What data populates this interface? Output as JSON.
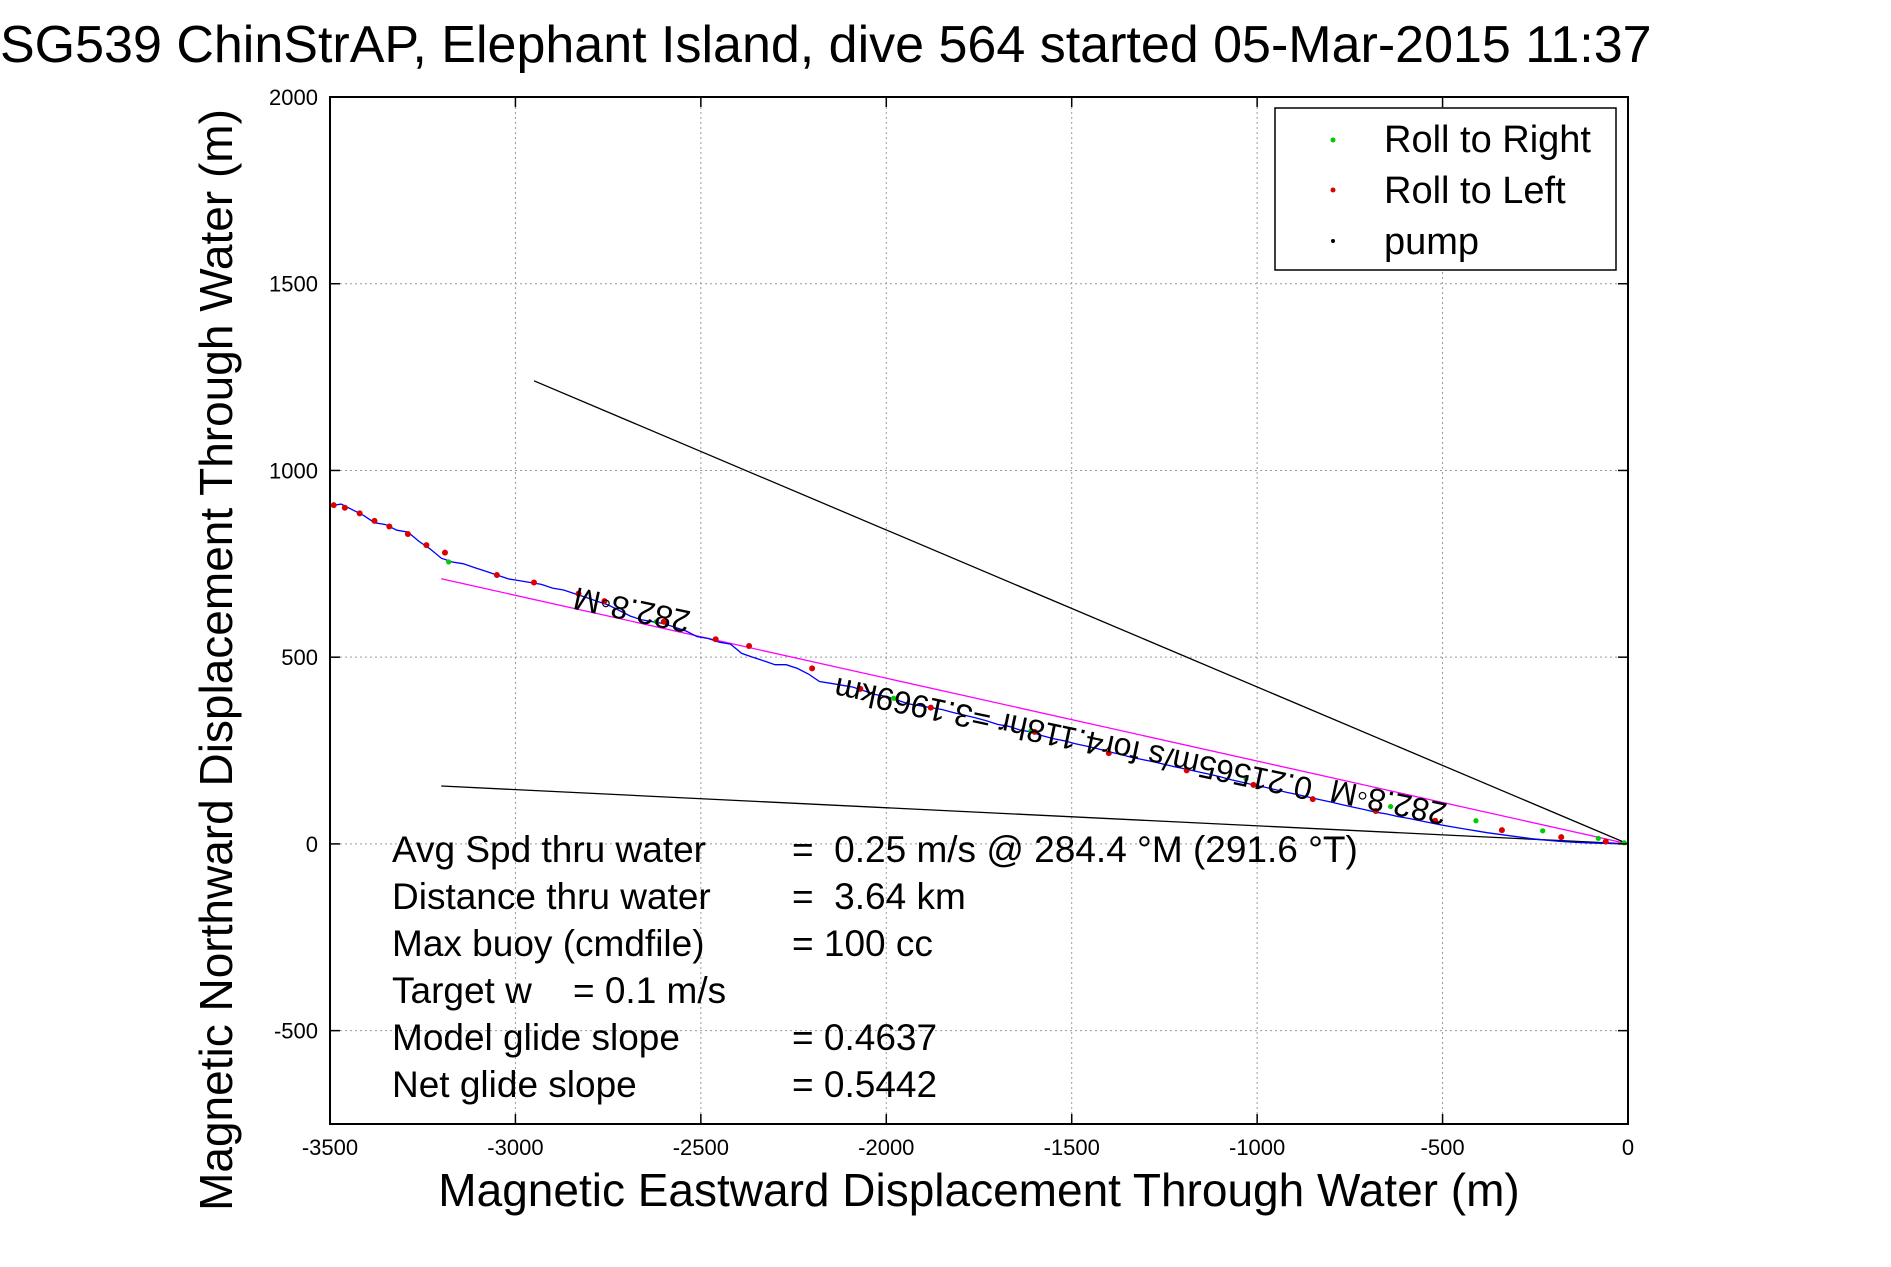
{
  "chart_data": {
    "type": "scatter",
    "title": "SG539 ChinStrAP, Elephant Island, dive 564 started 05-Mar-2015 11:37",
    "xlabel": "Magnetic Eastward Displacement Through Water (m)",
    "ylabel": "Magnetic Northward Displacement Through Water (m)",
    "xlim": [
      -3500,
      0
    ],
    "ylim": [
      -750,
      2000
    ],
    "xticks": [
      -3500,
      -3000,
      -2500,
      -2000,
      -1500,
      -1000,
      -500,
      0
    ],
    "yticks": [
      -500,
      0,
      500,
      1000,
      1500,
      2000
    ],
    "xtick_labels": [
      "-3500",
      "-3000",
      "-2500",
      "-2000",
      "-1500",
      "-1000",
      "-500",
      "0"
    ],
    "ytick_labels": [
      "-500",
      "0",
      "500",
      "1000",
      "1500",
      "2000"
    ],
    "grid": true,
    "legend_position": "top-right",
    "legend": [
      {
        "label": "Roll to Right",
        "color": "#00cc00"
      },
      {
        "label": "Roll to Left",
        "color": "#dd0000"
      },
      {
        "label": "pump",
        "color": "#000000"
      }
    ],
    "colors": {
      "track": "#0000ff",
      "course": "#ff00ff",
      "cone": "#000000"
    },
    "series": [
      {
        "kind": "track-line",
        "x": [
          -3500,
          -3470,
          -3440,
          -3410,
          -3380,
          -3350,
          -3320,
          -3290,
          -3260,
          -3230,
          -3200,
          -3170,
          -3140,
          -3110,
          -3080,
          -3050,
          -3020,
          -2990,
          -2960,
          -2930,
          -2900,
          -2870,
          -2840,
          -2810,
          -2780,
          -2750,
          -2720,
          -2690,
          -2660,
          -2630,
          -2600,
          -2570,
          -2540,
          -2510,
          -2480,
          -2450,
          -2420,
          -2390,
          -2360,
          -2330,
          -2300,
          -2270,
          -2240,
          -2210,
          -2180,
          -2150,
          -2120,
          -2090,
          -2060,
          -2030,
          -2000,
          -1970,
          -1940,
          -1910,
          -1880,
          -1850,
          -1820,
          -1790,
          -1760,
          -1730,
          -1700,
          -1670,
          -1640,
          -1610,
          -1580,
          -1550,
          -1520,
          -1490,
          -1460,
          -1430,
          -1400,
          -1370,
          -1340,
          -1310,
          -1280,
          -1250,
          -1220,
          -1190,
          -1160,
          -1130,
          -1100,
          -1070,
          -1040,
          -1010,
          -980,
          -950,
          -920,
          -890,
          -860,
          -830,
          -800,
          -770,
          -740,
          -710,
          -680,
          -650,
          -620,
          -590,
          -560,
          -530,
          -500,
          -470,
          -440,
          -410,
          -380,
          -350,
          -320,
          -290,
          -260,
          -230,
          -200,
          -170,
          -140,
          -110,
          -80,
          -50,
          -20,
          0
        ],
        "y": [
          905,
          910,
          895,
          880,
          860,
          855,
          840,
          835,
          810,
          790,
          765,
          755,
          750,
          740,
          730,
          720,
          710,
          705,
          700,
          695,
          685,
          680,
          670,
          660,
          650,
          640,
          625,
          610,
          600,
          595,
          590,
          580,
          570,
          555,
          550,
          540,
          535,
          510,
          500,
          490,
          480,
          480,
          470,
          455,
          435,
          430,
          425,
          420,
          410,
          400,
          395,
          385,
          375,
          370,
          365,
          360,
          352,
          345,
          338,
          330,
          320,
          315,
          305,
          300,
          290,
          282,
          276,
          268,
          262,
          255,
          247,
          240,
          232,
          226,
          220,
          213,
          206,
          200,
          193,
          187,
          180,
          172,
          165,
          158,
          152,
          145,
          138,
          132,
          125,
          118,
          112,
          105,
          98,
          92,
          85,
          80,
          73,
          68,
          62,
          56,
          50,
          45,
          40,
          35,
          30,
          26,
          22,
          18,
          14,
          11,
          8,
          6,
          4,
          3,
          2,
          1,
          0,
          0
        ]
      },
      {
        "name": "Roll to Right",
        "x": [
          -3180,
          -2620,
          -1980,
          -1610,
          -1030,
          -640,
          -410,
          -230,
          -80,
          -10
        ],
        "y": [
          755,
          595,
          390,
          302,
          175,
          100,
          62,
          35,
          15,
          3
        ]
      },
      {
        "name": "Roll to Left",
        "x": [
          -3490,
          -3460,
          -3420,
          -3380,
          -3340,
          -3290,
          -3240,
          -3190,
          -3050,
          -2950,
          -2830,
          -2760,
          -2600,
          -2460,
          -2370,
          -2200,
          -2070,
          -1880,
          -1600,
          -1400,
          -1190,
          -1010,
          -850,
          -680,
          -520,
          -340,
          -180,
          -60
        ],
        "y": [
          907,
          900,
          885,
          865,
          850,
          830,
          800,
          780,
          720,
          700,
          670,
          650,
          595,
          548,
          530,
          470,
          415,
          365,
          300,
          243,
          197,
          158,
          120,
          88,
          62,
          37,
          18,
          6
        ]
      }
    ],
    "reference_lines": [
      {
        "kind": "course",
        "x": [
          -3200,
          0
        ],
        "y": [
          710,
          0
        ]
      },
      {
        "kind": "cone-upper",
        "x": [
          -2950,
          0
        ],
        "y": [
          1240,
          0
        ]
      },
      {
        "kind": "cone-lower",
        "x": [
          -3200,
          0
        ],
        "y": [
          155,
          0
        ]
      }
    ],
    "annotations": [
      {
        "text": "282.8◦M",
        "x": -2680,
        "y": 655,
        "angle": 192
      },
      {
        "text": "0.21565m/s for4.118hr =3.1969km",
        "x": -1490,
        "y": 310,
        "angle": 192
      },
      {
        "text": "282.8◦M",
        "x": -640,
        "y": 140,
        "angle": 192
      }
    ],
    "stats": [
      {
        "label": "Avg Spd thru water",
        "value": "=  0.25 m/s @ 284.4 °M (291.6 °T)"
      },
      {
        "label": "Distance thru water",
        "value": "=  3.64 km"
      },
      {
        "label": "Max buoy (cmdfile)",
        "value": "= 100 cc"
      },
      {
        "label": "Target w    = 0.1 m/s",
        "value": ""
      },
      {
        "label": "Model glide slope",
        "value": "= 0.4637"
      },
      {
        "label": "Net glide slope",
        "value": "= 0.5442"
      }
    ]
  }
}
